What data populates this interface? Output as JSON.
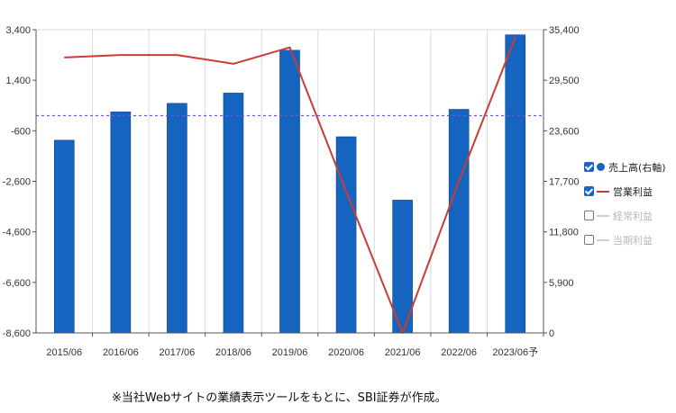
{
  "chart_data": {
    "type": "bar",
    "categories": [
      "2015/06",
      "2016/06",
      "2017/06",
      "2018/06",
      "2019/06",
      "2020/06",
      "2021/06",
      "2022/06",
      "2023/06"
    ],
    "category_suffix": {
      "8": "予"
    },
    "left_axis": {
      "ylim": [
        -8600,
        3400
      ],
      "ticks": [
        3400,
        1400,
        -600,
        -2600,
        -4600,
        -6600,
        -8600
      ],
      "tick_labels": [
        "3,400",
        "1,400",
        "-600",
        "-2,600",
        "-4,600",
        "-6,600",
        "-8,600"
      ]
    },
    "right_axis": {
      "ylim": [
        0,
        35400
      ],
      "ticks": [
        35400,
        29500,
        23600,
        17700,
        11800,
        5900,
        0
      ],
      "tick_labels": [
        "35,400",
        "29,500",
        "23,600",
        "17,700",
        "11,800",
        "5,900",
        "0"
      ]
    },
    "zero_line_value": 0,
    "series": [
      {
        "name": "売上高(右軸)",
        "type": "bar",
        "axis": "right",
        "color": "#1565c0",
        "values": [
          22500,
          25800,
          26800,
          28000,
          33000,
          22900,
          15500,
          26100,
          34800
        ]
      },
      {
        "name": "営業利益",
        "type": "line",
        "axis": "left",
        "color": "#cc3b33",
        "values": [
          2300,
          2400,
          2400,
          2050,
          2700,
          -3000,
          -8600,
          -2600,
          3100
        ]
      }
    ],
    "grid": "vertical"
  },
  "legend": {
    "items": [
      {
        "label": "売上高(右軸)",
        "checked": true,
        "swatch": "dot",
        "color": "#1565c0"
      },
      {
        "label": "営業利益",
        "checked": true,
        "swatch": "line",
        "color": "#cc3b33"
      },
      {
        "label": "経常利益",
        "checked": false,
        "swatch": "line",
        "color": "#cfcfcf"
      },
      {
        "label": "当期利益",
        "checked": false,
        "swatch": "line",
        "color": "#cfcfcf"
      }
    ]
  },
  "note": "※当社Webサイトの業績表示ツールをもとに、SBI証券が作成。"
}
